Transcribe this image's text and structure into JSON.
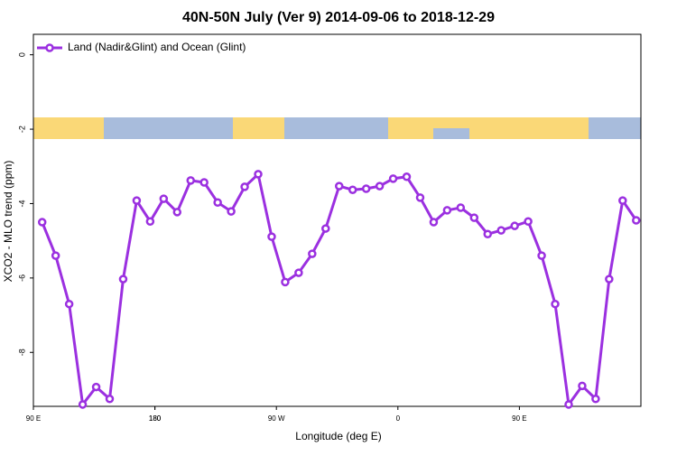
{
  "chart_data": {
    "type": "line",
    "title": "40N-50N July (Ver 9)   2014-09-06 to 2018-12-29",
    "x_label": "Longitude (deg E)",
    "y_label": "XCO2 - MLO trend (ppm)",
    "x": [
      96.5,
      106.5,
      116.5,
      126.5,
      136.5,
      146.5,
      156.5,
      166.5,
      176.5,
      186.5,
      196.5,
      206.5,
      216.5,
      226.5,
      236.5,
      246.5,
      256.5,
      266.5,
      276.5,
      286.5,
      296.5,
      306.5,
      316.5,
      326.5,
      336.5,
      346.5,
      356.5,
      366.5,
      376.5,
      386.5,
      396.5,
      406.5,
      416.5,
      426.5,
      436.5,
      446.5,
      456.5,
      466.5,
      476.5,
      486.5,
      496.5,
      506.5,
      516.5,
      526.5,
      536.5
    ],
    "series": [
      {
        "name": "Land (Nadir&Glint) and Ocean (Glint)",
        "color": "#9b30e0",
        "values": [
          -4.5,
          -5.4,
          -6.7,
          -9.4,
          -8.93,
          -9.25,
          -6.03,
          -3.92,
          -4.48,
          -3.87,
          -4.23,
          -3.38,
          -3.43,
          -3.97,
          -4.21,
          -3.55,
          -3.21,
          -4.89,
          -6.11,
          -5.86,
          -5.35,
          -4.67,
          -3.53,
          -3.63,
          -3.6,
          -3.53,
          -3.33,
          -3.28,
          -3.84,
          -4.5,
          -4.18,
          -4.11,
          -4.38,
          -4.82,
          -4.72,
          -4.6,
          -4.48,
          -5.4,
          -6.7,
          -9.4,
          -8.9,
          -9.25,
          -6.03,
          -3.92,
          -4.45
        ]
      }
    ],
    "xlim": [
      90,
      540
    ],
    "xticks": [
      {
        "value": 90,
        "label": "90 E"
      },
      180,
      {
        "value": 270,
        "label": "90 W"
      },
      {
        "value": 360,
        "label": "0"
      },
      {
        "value": 450,
        "label": "90 E"
      },
      180
    ],
    "ylim": [
      -9.45,
      0.55
    ],
    "yticks": [
      0,
      -2,
      -4,
      -6,
      -8
    ],
    "legend": "top-left"
  }
}
